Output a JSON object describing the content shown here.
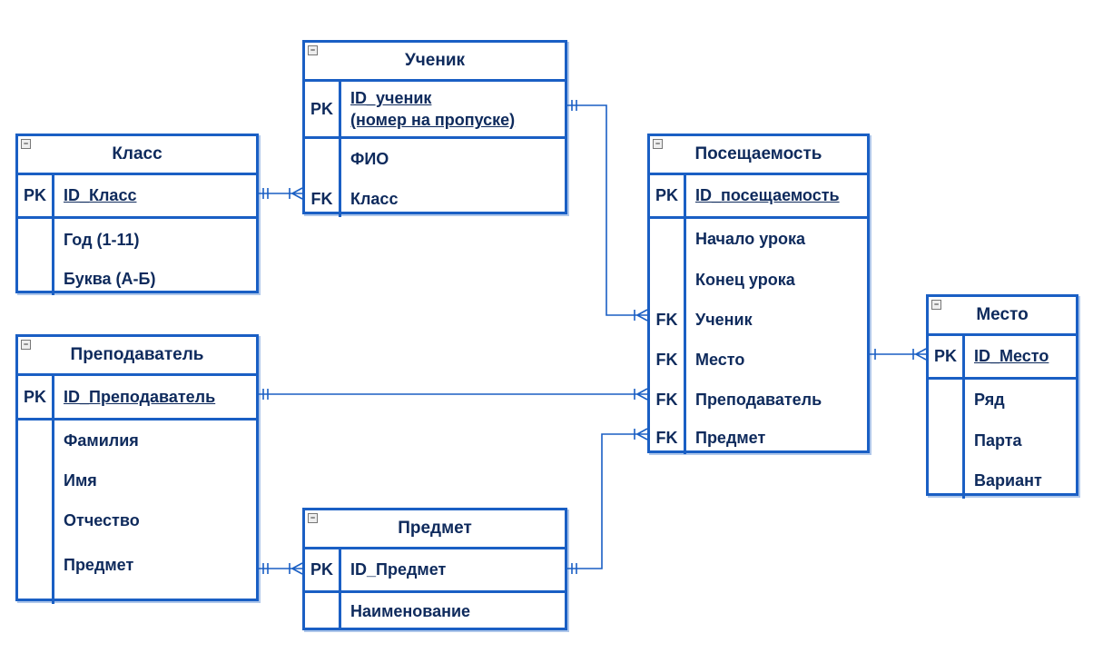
{
  "entities": {
    "klass": {
      "title": "Класс",
      "pk": {
        "key": "PK",
        "name": "ID_Класс"
      },
      "fields": [
        "Год (1-11)",
        "Буква (А-Б)"
      ]
    },
    "uchenik": {
      "title": "Ученик",
      "pk": {
        "key": "PK",
        "line1": "ID_ученик",
        "line2": "(номер на пропуске)"
      },
      "fields": [
        {
          "key": "",
          "name": "ФИО"
        },
        {
          "key": "FK",
          "name": "Класс"
        }
      ]
    },
    "poseshaemost": {
      "title": "Посещаемость",
      "pk": {
        "key": "PK",
        "name": "ID_посещаемость"
      },
      "fields": [
        {
          "key": "",
          "name": "Начало урока"
        },
        {
          "key": "",
          "name": "Конец урока"
        },
        {
          "key": "FK",
          "name": "Ученик"
        },
        {
          "key": "FK",
          "name": "Место"
        },
        {
          "key": "FK",
          "name": "Преподаватель"
        },
        {
          "key": "FK",
          "name": "Предмет"
        }
      ]
    },
    "mesto": {
      "title": "Место",
      "pk": {
        "key": "PK",
        "name": "ID_Место"
      },
      "fields": [
        "Ряд",
        "Парта",
        "Вариант"
      ]
    },
    "prepodavatel": {
      "title": "Преподаватель",
      "pk": {
        "key": "PK",
        "name": "ID_Преподаватель"
      },
      "fields": [
        "Фамилия",
        "Имя",
        "Отчество",
        "Предмет"
      ]
    },
    "predmet": {
      "title": "Предмет",
      "pk": {
        "key": "PK",
        "name": "ID_Предмет"
      },
      "fields": [
        "Наименование"
      ]
    }
  },
  "colors": {
    "line": "#1a5fc4",
    "text": "#0e2a5c"
  }
}
